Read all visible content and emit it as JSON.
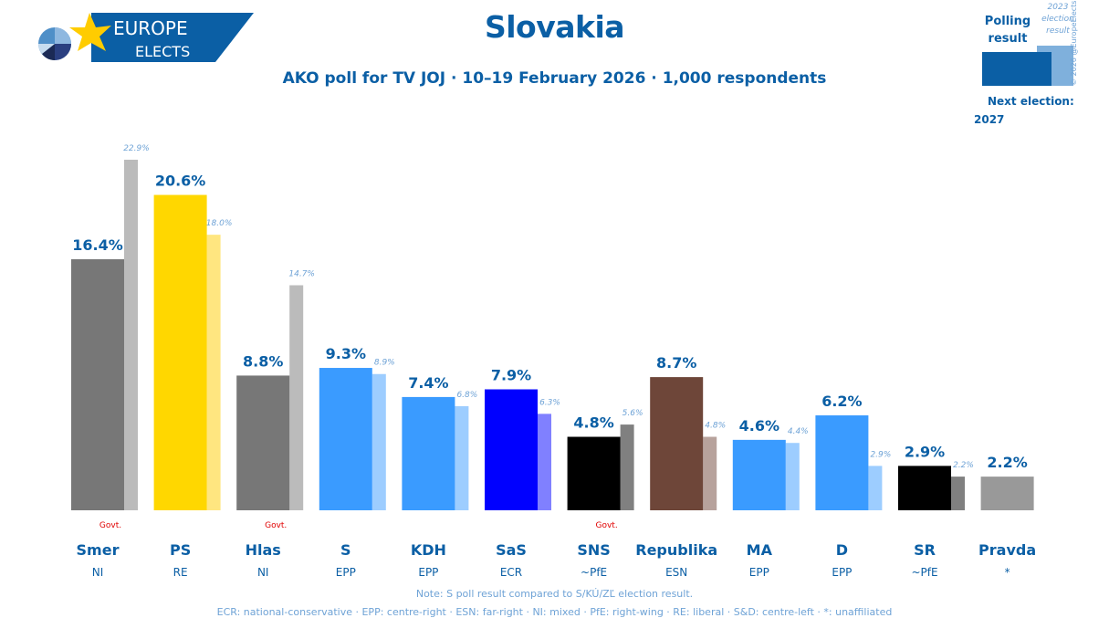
{
  "header": {
    "logo_line1": "EUROPE",
    "logo_line2": "ELECTS",
    "title": "Slovakia",
    "subtitle": "AKO poll for TV JOJ · 10–19 February 2026 · 1,000 respondents"
  },
  "legend": {
    "polling_label_1": "Polling",
    "polling_label_2": "result",
    "election_label_1": "2023",
    "election_label_2": "election",
    "election_label_3": "result",
    "copyright": "© 2026 @EuropeElects",
    "next_election_label": "Next election:",
    "next_election_year": "2027",
    "polling_color": "#0b5fa5",
    "election_color": "#7fb0dc"
  },
  "footer": {
    "note": "Note: S poll result compared to S/KÚ/ZĽ election result.",
    "glossary": "ECR: national-conservative · EPP: centre-right · ESN: far-right · NI: mixed · PfE: right-wing · RE: liberal · S&D: centre-left · *: unaffiliated"
  },
  "chart_data": {
    "type": "bar",
    "title": "Slovakia",
    "subtitle": "AKO poll for TV JOJ · 10–19 February 2026 · 1,000 respondents",
    "xlabel": "",
    "ylabel": "",
    "unit": "%",
    "ylim": [
      0,
      23
    ],
    "grid": false,
    "categories": [
      "Smer",
      "PS",
      "Hlas",
      "S",
      "KDH",
      "SaS",
      "SNS",
      "Republika",
      "MA",
      "D",
      "SR",
      "Pravda"
    ],
    "groups": [
      "NI",
      "RE",
      "NI",
      "EPP",
      "EPP",
      "ECR",
      "~PfE",
      "ESN",
      "EPP",
      "EPP",
      "~PfE",
      "*"
    ],
    "government": [
      true,
      false,
      true,
      false,
      false,
      false,
      true,
      false,
      false,
      false,
      false,
      false
    ],
    "government_label": "Govt.",
    "series": [
      {
        "name": "Polling result",
        "values": [
          16.4,
          20.6,
          8.8,
          9.3,
          7.4,
          7.9,
          4.8,
          8.7,
          4.6,
          6.2,
          2.9,
          2.2
        ],
        "colors": [
          "#777777",
          "#ffd700",
          "#777777",
          "#3a9bff",
          "#3a9bff",
          "#0000ff",
          "#000000",
          "#6e4639",
          "#3a9bff",
          "#3a9bff",
          "#000000",
          "#999999"
        ]
      },
      {
        "name": "2023 election result",
        "values": [
          22.9,
          18.0,
          14.7,
          8.9,
          6.8,
          6.3,
          5.6,
          4.8,
          4.4,
          2.9,
          2.2,
          null
        ],
        "colors": [
          "#bbbbbb",
          "#ffe680",
          "#bbbbbb",
          "#9dcdff",
          "#9dcdff",
          "#8080ff",
          "#808080",
          "#b7a29c",
          "#9dcdff",
          "#9dcdff",
          "#808080",
          null
        ]
      }
    ]
  }
}
